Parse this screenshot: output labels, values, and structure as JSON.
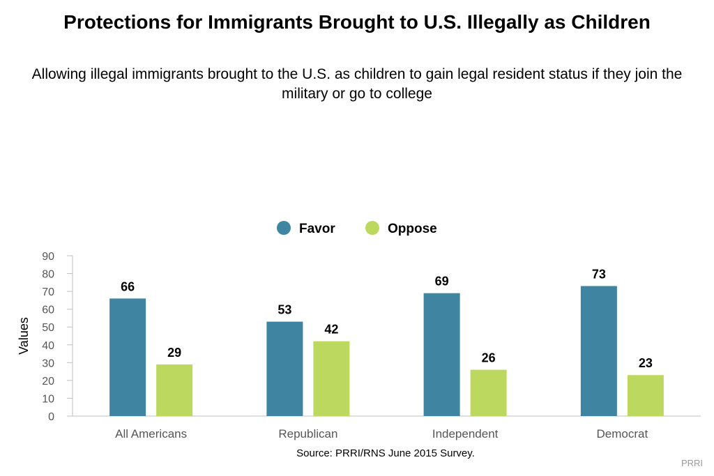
{
  "chart_data": {
    "type": "bar",
    "title": "Protections for Immigrants Brought to U.S. Illegally as Children",
    "subtitle": "Allowing illegal immigrants brought to the U.S. as children to gain legal resident status if they join the military or go to college",
    "categories": [
      "All Americans",
      "Republican",
      "Independent",
      "Democrat"
    ],
    "series": [
      {
        "name": "Favor",
        "values": [
          66,
          53,
          69,
          73
        ],
        "color": "#3f84a0"
      },
      {
        "name": "Oppose",
        "values": [
          29,
          42,
          26,
          23
        ],
        "color": "#bcd85f"
      }
    ],
    "xlabel": "",
    "ylabel": "Values",
    "ylim": [
      0,
      90
    ],
    "yticks": [
      0,
      10,
      20,
      30,
      40,
      50,
      60,
      70,
      80,
      90
    ],
    "grid": false,
    "legend": "top-center",
    "data_labels": true
  },
  "source": "Source: PRRI/RNS June 2015 Survey.",
  "credit": "PRRI"
}
